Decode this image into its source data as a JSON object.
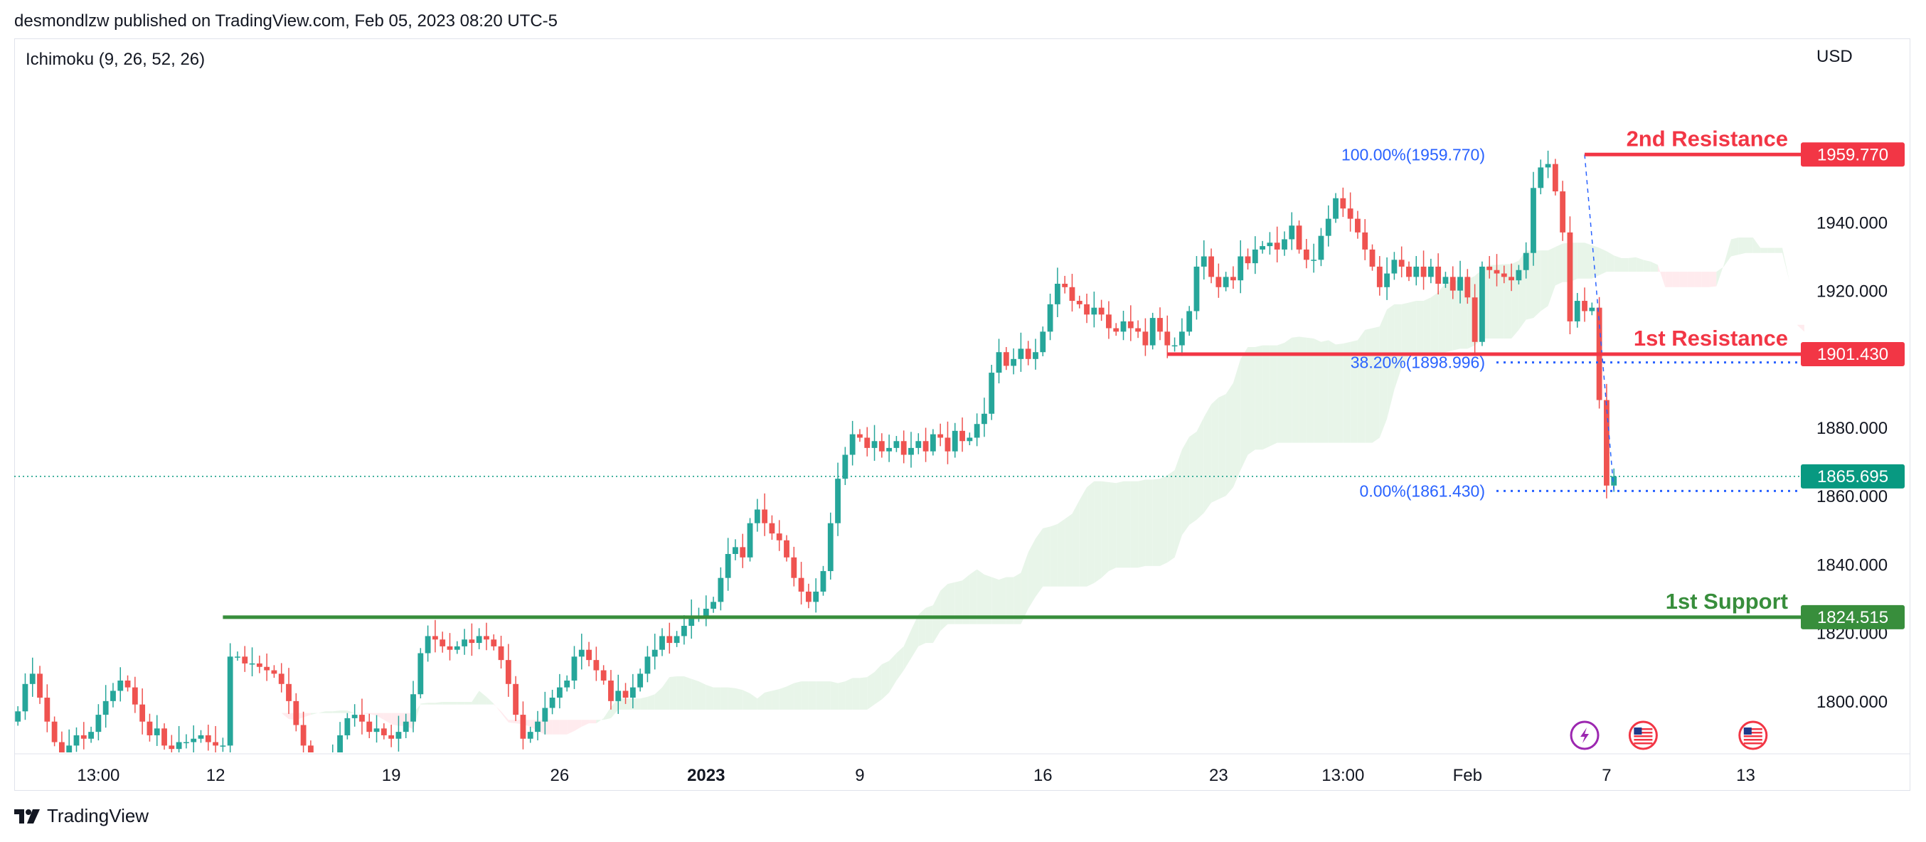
{
  "header": {
    "published_text": "desmondlzw published on TradingView.com, Feb 05, 2023 08:20 UTC-5",
    "indicator": "Ichimoku (9, 26, 52, 26)",
    "currency": "USD",
    "brand": "TradingView"
  },
  "colors": {
    "up": "#26a69a",
    "down": "#ef5350",
    "resistance": "#f23645",
    "support": "#388e3c",
    "fib": "#2962ff",
    "price_tag": "#089981",
    "cloud_bull": "#e8f5e9",
    "cloud_bear": "#ffebee"
  },
  "chart_data": {
    "type": "candlestick",
    "symbol": "XAUUSD",
    "ylim": [
      1785,
      1980
    ],
    "y_ticks": [
      1800,
      1820,
      1840,
      1860,
      1880,
      1900,
      1920,
      1940
    ],
    "y_tick_labels": [
      "1800.000",
      "1820.000",
      "1840.000",
      "1860.000",
      "1880.000",
      "1900.000",
      "1920.000",
      "1940.000"
    ],
    "x_tick_labels": [
      {
        "label": "13:00",
        "bold": false,
        "bar": 11
      },
      {
        "label": "12",
        "bold": false,
        "bar": 27
      },
      {
        "label": "19",
        "bold": false,
        "bar": 51
      },
      {
        "label": "26",
        "bold": false,
        "bar": 74
      },
      {
        "label": "2023",
        "bold": true,
        "bar": 94
      },
      {
        "label": "9",
        "bold": false,
        "bar": 115
      },
      {
        "label": "16",
        "bold": false,
        "bar": 140
      },
      {
        "label": "23",
        "bold": false,
        "bar": 164
      },
      {
        "label": "13:00",
        "bold": false,
        "bar": 181
      },
      {
        "label": "Feb",
        "bold": false,
        "bar": 198
      },
      {
        "label": "7",
        "bold": false,
        "bar": 217
      },
      {
        "label": "13",
        "bold": false,
        "bar": 236
      }
    ],
    "total_bars": 245,
    "closes": [
      1797,
      1805,
      1808,
      1801,
      1794,
      1788,
      1785,
      1787,
      1790,
      1789,
      1791,
      1796,
      1800,
      1803,
      1806,
      1804,
      1799,
      1794,
      1790,
      1792,
      1787,
      1786,
      1788,
      1788,
      1789,
      1790,
      1788,
      1787,
      1787,
      1813,
      1813,
      1811,
      1811,
      1810,
      1809,
      1808,
      1805,
      1800,
      1793,
      1787,
      1781,
      1776,
      1780,
      1785,
      1790,
      1795,
      1796,
      1794,
      1791,
      1792,
      1790,
      1789,
      1791,
      1794,
      1802,
      1814,
      1819,
      1818,
      1816,
      1815,
      1816,
      1818,
      1817,
      1819,
      1818,
      1816,
      1812,
      1805,
      1796,
      1789,
      1791,
      1794,
      1798,
      1801,
      1804,
      1806,
      1813,
      1815,
      1812,
      1809,
      1806,
      1800,
      1803,
      1801,
      1804,
      1808,
      1813,
      1815,
      1819,
      1817,
      1819,
      1822,
      1825,
      1825,
      1827,
      1829,
      1836,
      1843,
      1845,
      1842,
      1852,
      1856,
      1852,
      1849,
      1847,
      1842,
      1836,
      1832,
      1829,
      1832,
      1838,
      1852,
      1865,
      1872,
      1878,
      1877,
      1874,
      1876,
      1873,
      1874,
      1876,
      1872,
      1874,
      1876,
      1873,
      1878,
      1877,
      1873,
      1879,
      1876,
      1877,
      1881,
      1884,
      1896,
      1902,
      1898,
      1900,
      1903,
      1900,
      1902,
      1908,
      1916,
      1922,
      1921,
      1917,
      1916,
      1913,
      1915,
      1913,
      1909,
      1908,
      1911,
      1909,
      1908,
      1904,
      1912,
      1908,
      1904,
      1904,
      1908,
      1914,
      1927,
      1930,
      1924,
      1921,
      1924,
      1923,
      1930,
      1928,
      1932,
      1933,
      1934,
      1932,
      1935,
      1939,
      1932,
      1929,
      1929,
      1936,
      1941,
      1947,
      1944,
      1941,
      1937,
      1932,
      1927,
      1921,
      1925,
      1929,
      1927,
      1924,
      1927,
      1924,
      1927,
      1922,
      1924,
      1920,
      1924,
      1918,
      1905,
      1927,
      1926,
      1925,
      1924,
      1923,
      1926,
      1931,
      1950,
      1956,
      1957,
      1949,
      1937,
      1911,
      1917,
      1914,
      1915,
      1888,
      1863,
      1865.695
    ],
    "fib_levels": [
      {
        "label": "100.00%(1959.770)",
        "price": 1959.77
      },
      {
        "label": "38.20%(1898.996)",
        "price": 1898.996
      },
      {
        "label": "0.00%(1861.430)",
        "price": 1861.43
      }
    ],
    "levels": [
      {
        "name": "2nd Resistance",
        "price": 1959.77,
        "tag": "1959.770",
        "color": "#f23645",
        "start_bar": 214
      },
      {
        "name": "1st Resistance",
        "price": 1901.43,
        "tag": "1901.430",
        "color": "#f23645",
        "start_bar": 157
      },
      {
        "name": "1st Support",
        "price": 1824.515,
        "tag": "1824.515",
        "color": "#388e3c",
        "start_bar": 28
      }
    ],
    "last_price": {
      "price": 1865.695,
      "tag": "1865.695"
    },
    "events": [
      {
        "type": "lightning",
        "bar": 214
      },
      {
        "type": "us-flag",
        "bar": 222
      },
      {
        "type": "us-flag",
        "bar": 237
      }
    ]
  }
}
